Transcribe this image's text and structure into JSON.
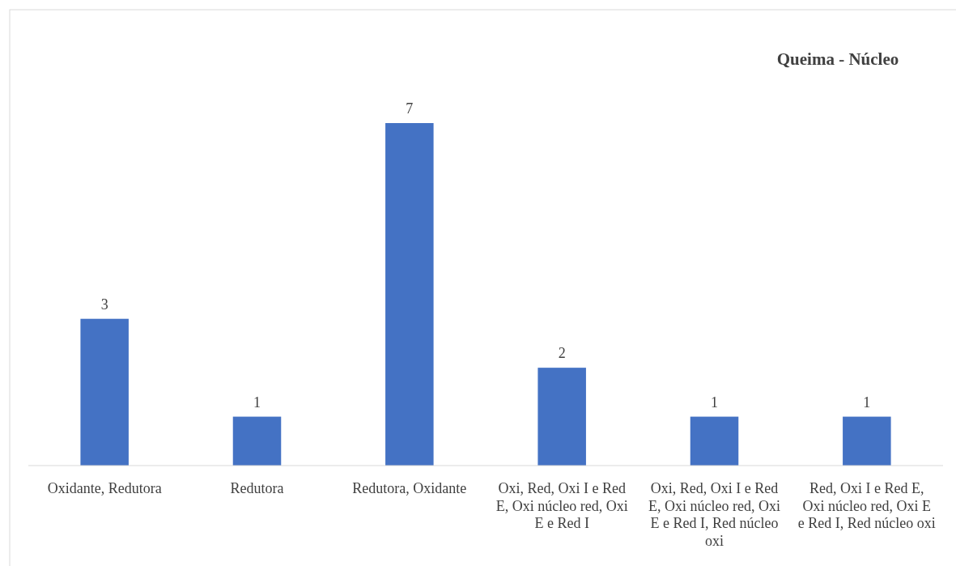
{
  "chart_data": {
    "type": "bar",
    "title": "Queima - Núcleo",
    "categories": [
      "Oxidante, Redutora",
      "Redutora",
      "Redutora, Oxidante",
      "Oxi, Red, Oxi I e Red E, Oxi núcleo red, Oxi E e Red I",
      "Oxi, Red, Oxi I e Red E, Oxi núcleo red, Oxi E e Red I, Red núcleo oxi",
      "Red, Oxi I e Red E, Oxi núcleo red, Oxi E e Red I, Red núcleo oxi"
    ],
    "values": [
      3,
      1,
      7,
      2,
      1,
      1
    ],
    "color": "#4472c4",
    "data_labels": true
  }
}
